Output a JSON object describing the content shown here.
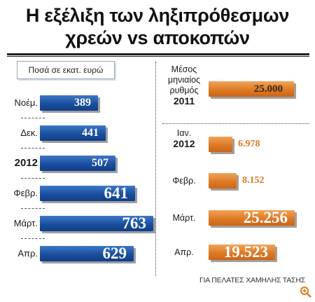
{
  "title": {
    "line1": "Η εξέλιξη των ληξιπρόθεσμων",
    "line2": "χρεών vs αποκοπών"
  },
  "unit_label": "Ποσά σε εκατ. ευρώ",
  "footer": "ΓΙΑ ΠΕΛΑΤΕΣ ΧΑΜΗΛΗΣ ΤΑΣΗΣ",
  "colors": {
    "left_bars": "#1a4f9e",
    "right_bars": "#de7a25"
  },
  "chart_data": [
    {
      "type": "bar",
      "orientation": "horizontal",
      "categories": [
        "Νοέμ.",
        "Δεκ.",
        "2012",
        "Φεβρ.",
        "Μάρτ.",
        "Απρ."
      ],
      "values": [
        389,
        441,
        507,
        641,
        763,
        629
      ],
      "value_labels": [
        "389",
        "441",
        "507",
        "641",
        "763",
        "629"
      ],
      "xlim": [
        0,
        800
      ]
    },
    {
      "type": "bar",
      "orientation": "horizontal",
      "categories": [
        "Μέσος μηνιαίος ρυθμός 2011",
        "Ιαν. 2012",
        "Φεβρ.",
        "Μάρτ.",
        "Απρ."
      ],
      "values": [
        25000,
        6978,
        8152,
        25256,
        19523
      ],
      "value_labels": [
        "25.000",
        "6.978",
        "8.152",
        "25.256",
        "19.523"
      ],
      "xlim": [
        0,
        30000
      ]
    }
  ]
}
